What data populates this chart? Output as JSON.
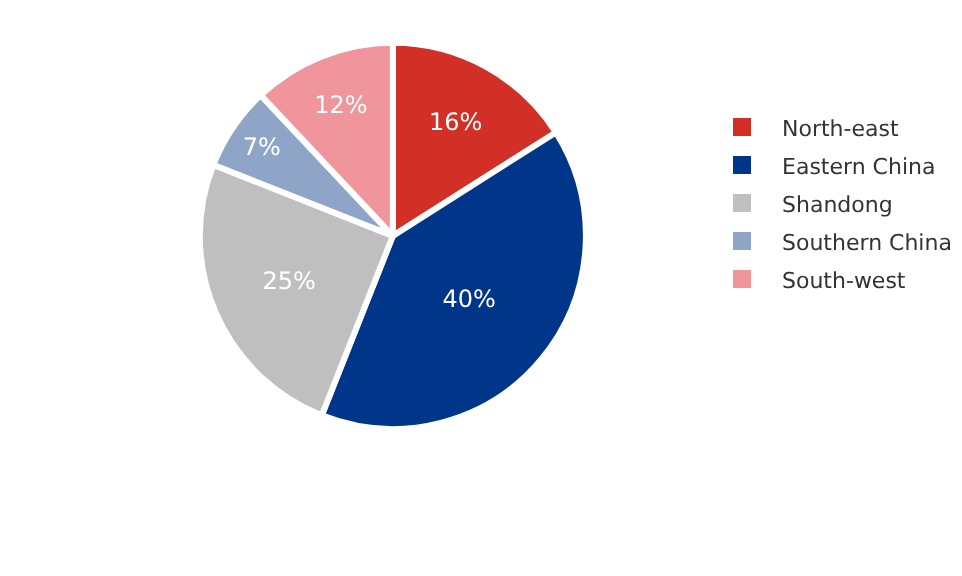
{
  "chart_data": {
    "type": "pie",
    "categories": [
      "North-east",
      "Eastern China",
      "Shandong",
      "Southern China",
      "South-west"
    ],
    "values": [
      16,
      40,
      25,
      7,
      12
    ],
    "colors": [
      "#d22f27",
      "#00368a",
      "#bfbfbf",
      "#8ea5c8",
      "#f0959c"
    ],
    "value_labels": [
      "16%",
      "40%",
      "25%",
      "7%",
      "12%"
    ],
    "legend": "right"
  }
}
